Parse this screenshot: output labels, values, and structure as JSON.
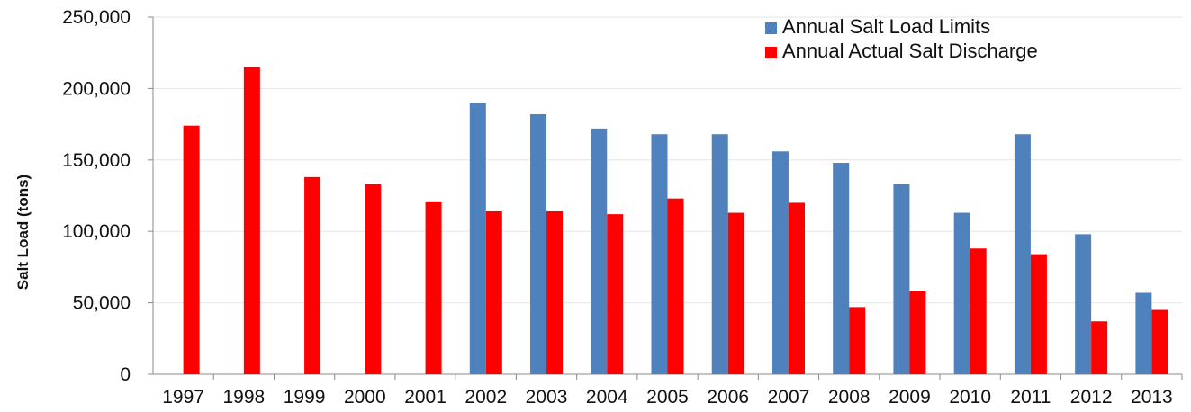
{
  "chart_data": {
    "type": "bar",
    "title": "",
    "xlabel": "",
    "ylabel": "Salt Load (tons)",
    "ylim": [
      0,
      250000
    ],
    "yticks": [
      "0",
      "50,000",
      "100,000",
      "150,000",
      "200,000",
      "250,000"
    ],
    "ytick_values": [
      0,
      50000,
      100000,
      150000,
      200000,
      250000
    ],
    "grid": true,
    "legend_position": "top-right",
    "categories": [
      "1997",
      "1998",
      "1999",
      "2000",
      "2001",
      "2002",
      "2003",
      "2004",
      "2005",
      "2006",
      "2007",
      "2008",
      "2009",
      "2010",
      "2011",
      "2012",
      "2013"
    ],
    "series": [
      {
        "name": "Annual Salt Load Limits",
        "color": "#4f81bd",
        "values": [
          null,
          null,
          null,
          null,
          null,
          190000,
          182000,
          172000,
          168000,
          168000,
          156000,
          148000,
          133000,
          113000,
          168000,
          98000,
          57000
        ]
      },
      {
        "name": "Annual Actual Salt Discharge",
        "color": "#ff0000",
        "values": [
          174000,
          215000,
          138000,
          133000,
          121000,
          114000,
          114000,
          112000,
          123000,
          113000,
          120000,
          47000,
          58000,
          88000,
          84000,
          37000,
          45000
        ]
      }
    ]
  }
}
